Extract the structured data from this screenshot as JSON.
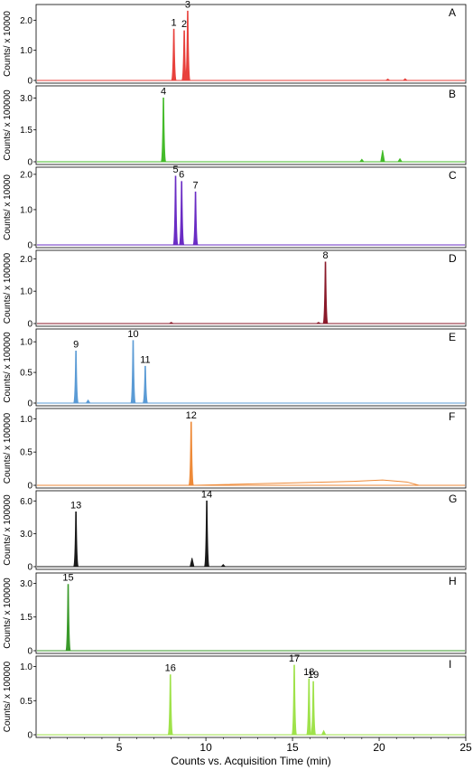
{
  "chart_data": {
    "type": "line",
    "xlabel": "Counts vs. Acquisition Time (min)",
    "xlim": [
      0.2,
      25
    ],
    "xticks": [
      5,
      10,
      15,
      20,
      25
    ],
    "panels": [
      {
        "letter": "A",
        "color": "#e8413c",
        "ylabel": "Counts/ x 10000",
        "ylim": [
          0,
          2.4
        ],
        "yticks": [
          0,
          1.0,
          2.0
        ],
        "peaks": [
          {
            "label": "1",
            "t": 8.15,
            "h": 1.7
          },
          {
            "label": "2",
            "t": 8.75,
            "h": 1.65
          },
          {
            "label": "3",
            "t": 8.95,
            "h": 2.3
          }
        ],
        "bumps": [
          {
            "t": 20.5,
            "h": 0.05
          },
          {
            "t": 21.5,
            "h": 0.06
          }
        ]
      },
      {
        "letter": "B",
        "color": "#44bb2a",
        "ylabel": "Counts/ x 100000",
        "ylim": [
          0,
          3.4
        ],
        "yticks": [
          0,
          1.5,
          3.0
        ],
        "peaks": [
          {
            "label": "4",
            "t": 7.55,
            "h": 3.0
          }
        ],
        "bumps": [
          {
            "t": 19.0,
            "h": 0.12
          },
          {
            "t": 20.2,
            "h": 0.55
          },
          {
            "t": 21.2,
            "h": 0.15
          }
        ]
      },
      {
        "letter": "C",
        "color": "#6a2cc4",
        "ylabel": "Counts/ x 10000",
        "ylim": [
          0,
          2.1
        ],
        "yticks": [
          0,
          1.0,
          2.0
        ],
        "peaks": [
          {
            "label": "5",
            "t": 8.25,
            "h": 1.95
          },
          {
            "label": "6",
            "t": 8.6,
            "h": 1.8
          },
          {
            "label": "7",
            "t": 9.4,
            "h": 1.5
          }
        ],
        "bumps": []
      },
      {
        "letter": "D",
        "color": "#8a1a2a",
        "ylabel": "Counts/ x 100000",
        "ylim": [
          0,
          2.15
        ],
        "yticks": [
          0,
          1.0,
          2.0
        ],
        "peaks": [
          {
            "label": "8",
            "t": 16.9,
            "h": 1.9
          }
        ],
        "bumps": [
          {
            "t": 8.0,
            "h": 0.04
          },
          {
            "t": 16.5,
            "h": 0.04
          }
        ]
      },
      {
        "letter": "E",
        "color": "#5b9bd5",
        "ylabel": "Counts/ x 100000",
        "ylim": [
          0,
          1.15
        ],
        "yticks": [
          0,
          0.5,
          1.0
        ],
        "peaks": [
          {
            "label": "9",
            "t": 2.5,
            "h": 0.85
          },
          {
            "label": "10",
            "t": 5.8,
            "h": 1.02
          },
          {
            "label": "11",
            "t": 6.5,
            "h": 0.6
          }
        ],
        "bumps": [
          {
            "t": 3.2,
            "h": 0.05
          }
        ]
      },
      {
        "letter": "F",
        "color": "#ee8a38",
        "ylabel": "Counts/ x 100000",
        "ylim": [
          0,
          1.1
        ],
        "yticks": [
          0,
          0.5,
          1.0
        ],
        "peaks": [
          {
            "label": "12",
            "t": 9.15,
            "h": 0.95
          }
        ],
        "bumps": []
      },
      {
        "letter": "G",
        "color": "#1a1a1a",
        "ylabel": "Counts/ x 100000",
        "ylim": [
          0,
          6.6
        ],
        "yticks": [
          0,
          3.0,
          6.0
        ],
        "peaks": [
          {
            "label": "13",
            "t": 2.5,
            "h": 5.0
          },
          {
            "label": "14",
            "t": 10.05,
            "h": 6.0
          }
        ],
        "bumps": [
          {
            "t": 9.2,
            "h": 0.8
          },
          {
            "t": 11.0,
            "h": 0.2
          }
        ]
      },
      {
        "letter": "H",
        "color": "#3a9a2a",
        "ylabel": "Counts/ x 100000",
        "ylim": [
          0,
          3.3
        ],
        "yticks": [
          0,
          1.5,
          3.0
        ],
        "peaks": [
          {
            "label": "15",
            "t": 2.05,
            "h": 2.95
          }
        ],
        "bumps": []
      },
      {
        "letter": "I",
        "color": "#9fe24a",
        "ylabel": "Counts/ x 100000",
        "ylim": [
          0,
          1.1
        ],
        "yticks": [
          0,
          0.5,
          1.0
        ],
        "peaks": [
          {
            "label": "16",
            "t": 7.95,
            "h": 0.88
          },
          {
            "label": "17",
            "t": 15.1,
            "h": 1.02
          },
          {
            "label": "18",
            "t": 15.95,
            "h": 0.82
          },
          {
            "label": "19",
            "t": 16.2,
            "h": 0.78
          }
        ],
        "bumps": [
          {
            "t": 16.8,
            "h": 0.06
          }
        ]
      }
    ]
  }
}
